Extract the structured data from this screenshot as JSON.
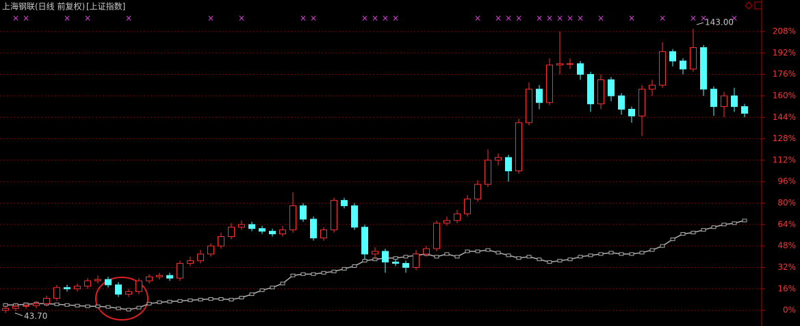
{
  "chart_data": {
    "type": "candlestick",
    "title": "上海钢联(日线 前复权)",
    "subtitle": "[上证指数]",
    "ylim": [
      -11.7,
      231.5
    ],
    "yticks": [
      {
        "value": 0,
        "label": "0%"
      },
      {
        "value": 16,
        "label": "16%"
      },
      {
        "value": 32,
        "label": "32%"
      },
      {
        "value": 48,
        "label": "48%"
      },
      {
        "value": 64,
        "label": "64%"
      },
      {
        "value": 80,
        "label": "80%"
      },
      {
        "value": 96,
        "label": "96%"
      },
      {
        "value": 112,
        "label": "112%"
      },
      {
        "value": 128,
        "label": "128%"
      },
      {
        "value": 144,
        "label": "144%"
      },
      {
        "value": 160,
        "label": "160%"
      },
      {
        "value": 176,
        "label": "176%"
      },
      {
        "value": 192,
        "label": "192%"
      },
      {
        "value": 208,
        "label": "208%"
      }
    ],
    "grid": true,
    "stock": {
      "up_color": "#ff3232",
      "down_color": "#54ffff",
      "open": [
        0,
        1.5,
        3,
        3.5,
        5,
        9,
        17,
        16,
        18,
        22,
        23,
        19,
        12,
        14,
        22,
        25,
        26,
        24,
        35,
        37,
        42,
        48,
        55,
        62,
        64,
        61,
        59,
        57,
        60,
        78,
        68,
        54,
        60,
        82,
        78,
        62,
        42,
        44,
        36,
        35,
        32,
        42,
        46,
        65,
        67,
        72,
        83,
        94,
        112,
        114,
        104,
        140,
        165,
        155,
        183,
        184,
        184,
        176,
        154,
        172,
        160,
        150,
        145,
        165,
        168,
        193,
        186,
        180,
        196,
        165,
        152,
        160,
        152
      ],
      "high": [
        3.5,
        5,
        5.5,
        7,
        11,
        19,
        19,
        20,
        24,
        26,
        25,
        21,
        16,
        24,
        27,
        28,
        28,
        37,
        40,
        45,
        50,
        58,
        65,
        67,
        66,
        63,
        61,
        63,
        88,
        80,
        70,
        62,
        84,
        84,
        80,
        64,
        47,
        46,
        38,
        37,
        45,
        48,
        67,
        70,
        75,
        86,
        97,
        120,
        117,
        116,
        143,
        170,
        168,
        188,
        208,
        188,
        186,
        178,
        176,
        174,
        162,
        152,
        168,
        172,
        200,
        195,
        188,
        210,
        198,
        167,
        163,
        166,
        154
      ],
      "low": [
        -2,
        -0.5,
        1,
        1.5,
        3,
        7,
        14,
        14,
        16,
        20,
        17,
        10,
        10,
        12,
        20,
        23,
        22,
        22,
        33,
        35,
        40,
        46,
        53,
        60,
        59,
        57,
        55,
        55,
        58,
        66,
        52,
        52,
        58,
        76,
        60,
        38,
        38,
        28,
        33,
        28,
        30,
        40,
        44,
        63,
        65,
        70,
        81,
        92,
        108,
        96,
        102,
        138,
        150,
        153,
        176,
        180,
        172,
        148,
        150,
        156,
        146,
        140,
        130,
        160,
        166,
        182,
        176,
        178,
        160,
        145,
        144,
        148,
        144
      ],
      "close": [
        1.5,
        3,
        3.5,
        5,
        9,
        17,
        16,
        18,
        22,
        23,
        19,
        12,
        14,
        22,
        25,
        26,
        24,
        35,
        37,
        42,
        48,
        55,
        62,
        64,
        61,
        59,
        57,
        60,
        78,
        68,
        54,
        60,
        82,
        78,
        62,
        42,
        44,
        36,
        35,
        32,
        42,
        46,
        65,
        67,
        72,
        83,
        94,
        112,
        114,
        104,
        140,
        165,
        155,
        183,
        184,
        184,
        176,
        154,
        172,
        160,
        150,
        145,
        165,
        168,
        193,
        186,
        180,
        196,
        165,
        152,
        160,
        152,
        147
      ]
    },
    "index": {
      "color": "#b0b0b0",
      "values": [
        4,
        4,
        4.5,
        5,
        5,
        4.5,
        4,
        3.5,
        3,
        3,
        2.5,
        1.5,
        0.5,
        2,
        5,
        6,
        6.5,
        7,
        7.5,
        8,
        8.5,
        8.5,
        8,
        9.5,
        12,
        15,
        17,
        20,
        26,
        27,
        27,
        28,
        29,
        31,
        33,
        37,
        38,
        39,
        39,
        40,
        41,
        42,
        40,
        42,
        40,
        44,
        44,
        45,
        43,
        41,
        39,
        40,
        38,
        36,
        37,
        38,
        40,
        41,
        42,
        43,
        42,
        42,
        43,
        45,
        48,
        53,
        57,
        58,
        60,
        62,
        64,
        65,
        67
      ]
    },
    "annotations": [
      {
        "label": "143.00"
      },
      {
        "label": "43.70"
      }
    ],
    "signals": {
      "label": "×",
      "color": "#e040e0",
      "at": [
        1,
        2,
        6,
        8,
        12,
        20,
        23,
        29,
        30,
        35,
        36,
        37,
        38,
        46,
        48,
        49,
        50,
        52,
        53,
        54,
        55,
        56,
        58,
        61,
        64,
        67,
        68,
        71
      ]
    }
  }
}
